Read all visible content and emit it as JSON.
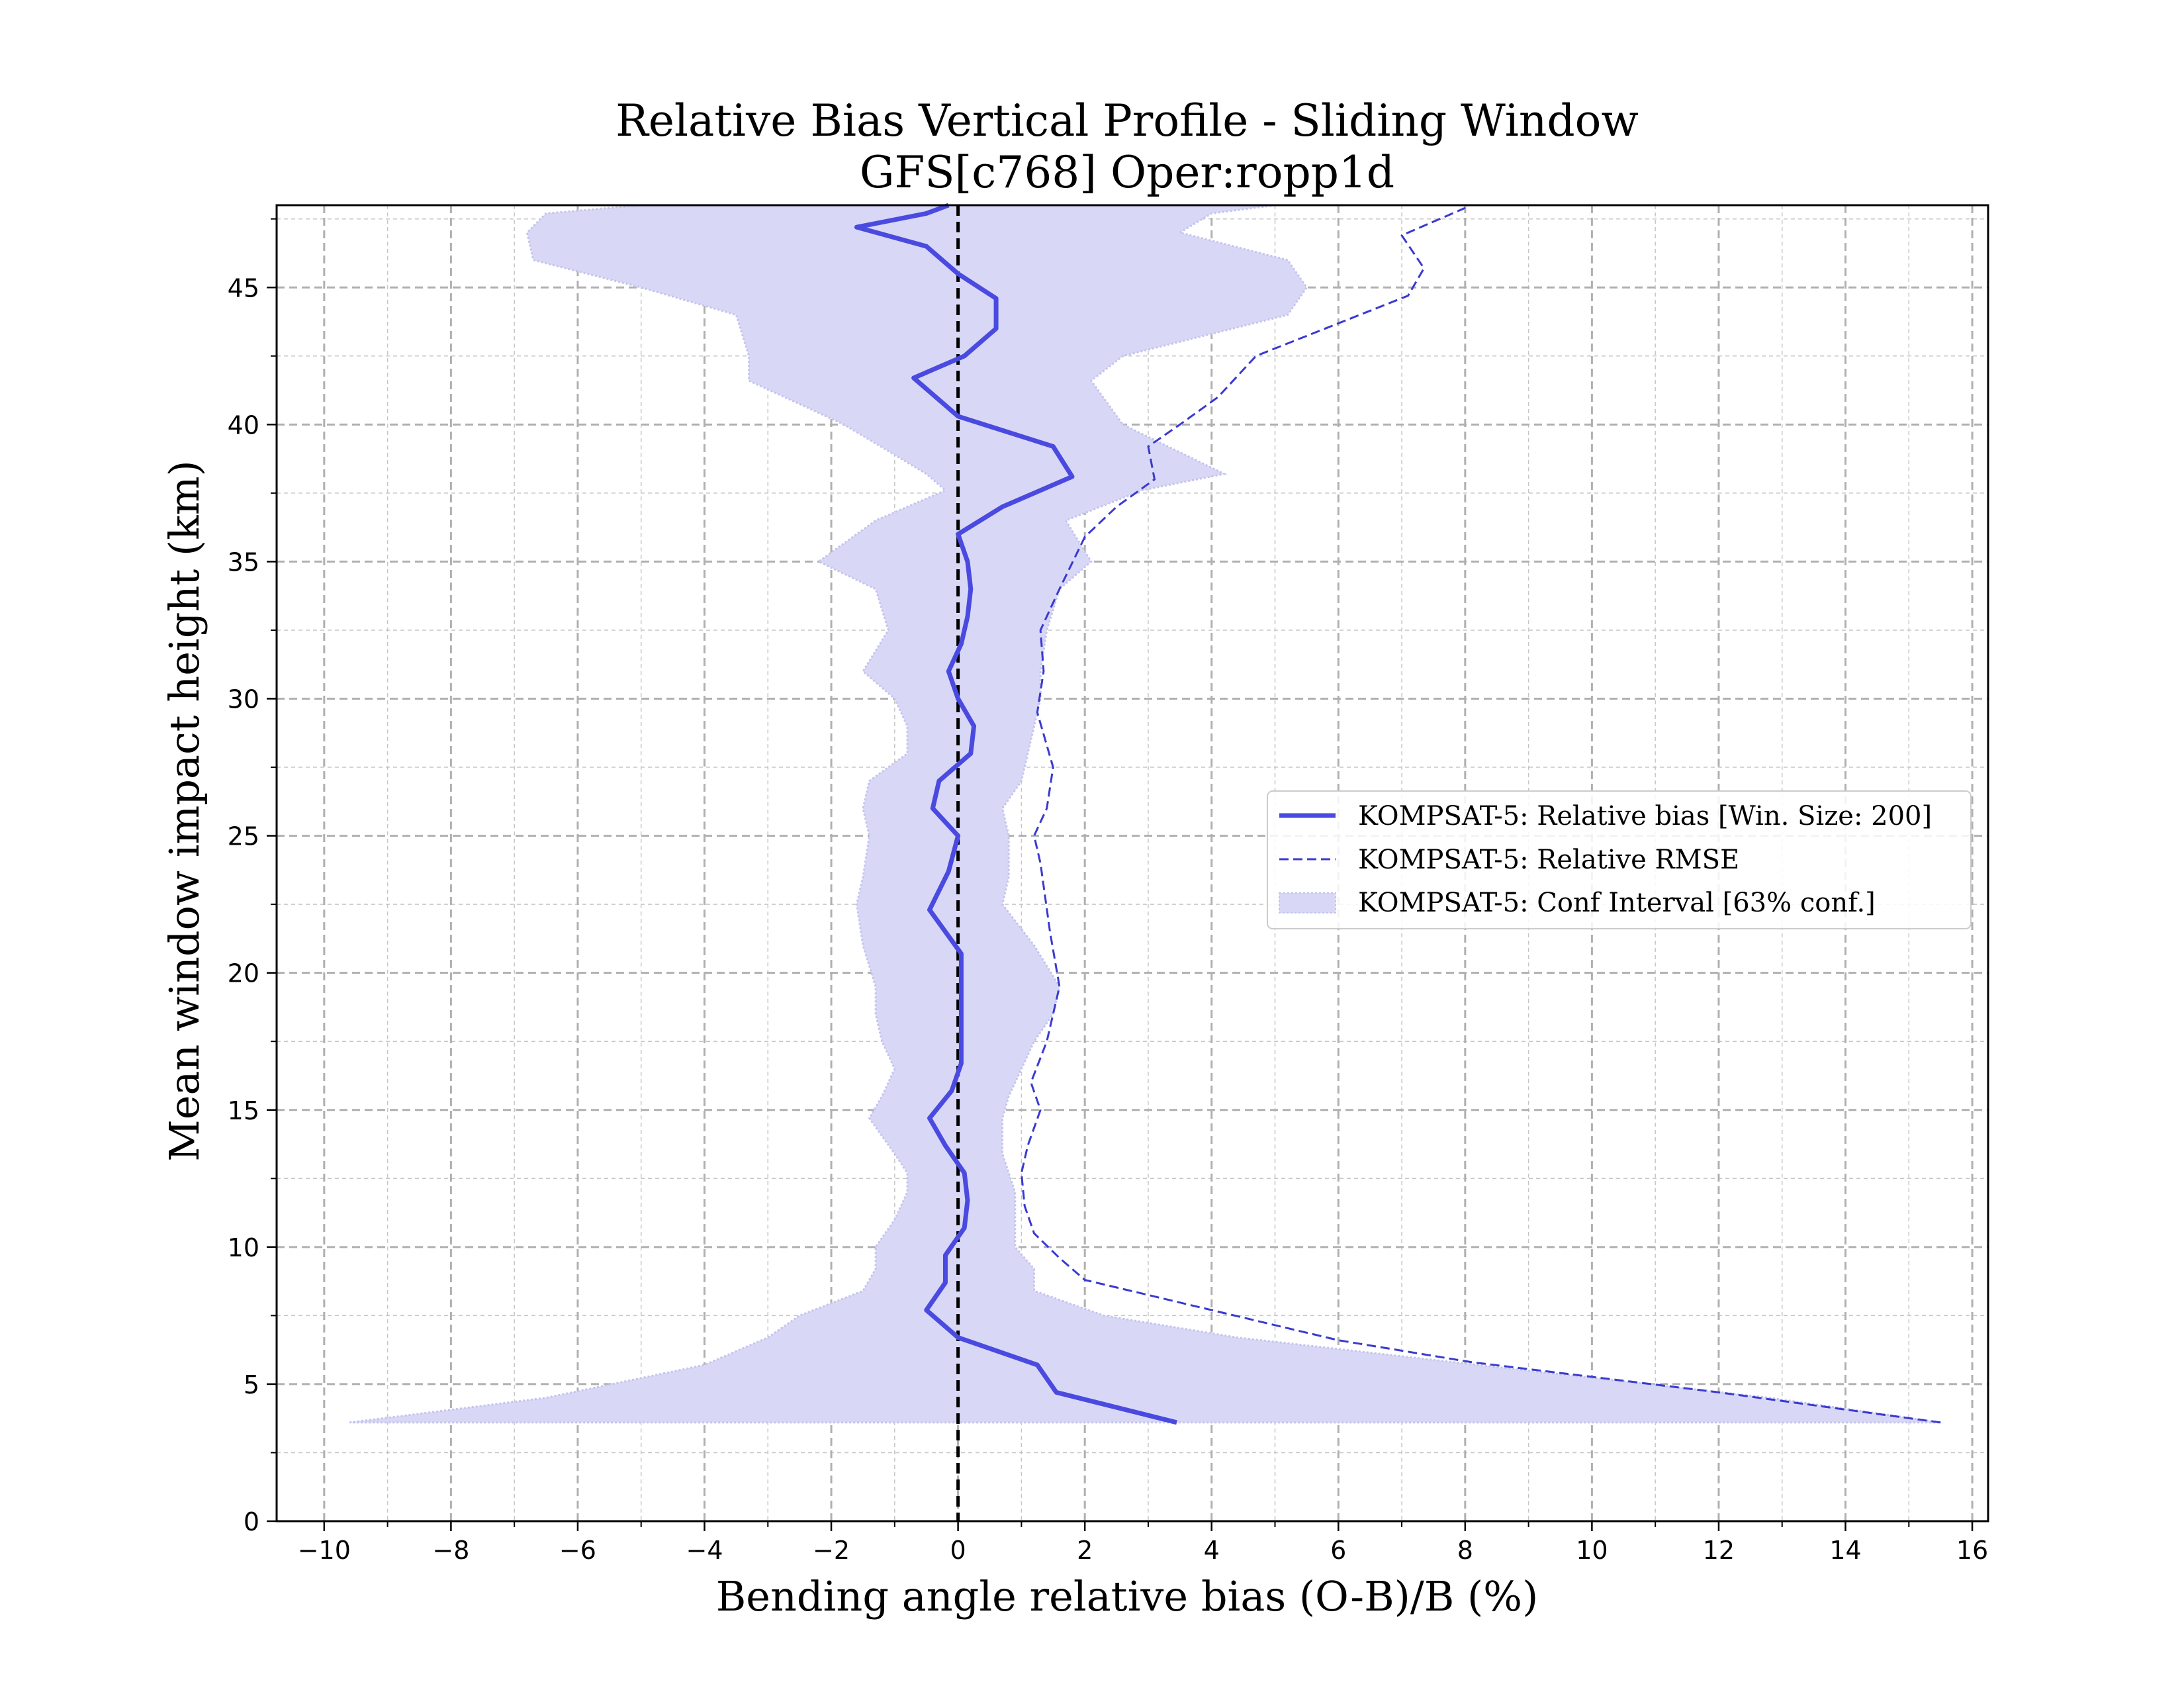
{
  "chart_data": {
    "type": "line",
    "title": "Relative Bias Vertical Profile - Sliding Window",
    "subtitle": "GFS[c768] Oper:ropp1d",
    "xlabel": "Bending angle relative bias (O-B)/B (%)",
    "ylabel": "Mean window impact height (km)",
    "xlim": [
      -10.75,
      16.25
    ],
    "ylim": [
      0,
      48
    ],
    "xticks": [
      -10,
      -8,
      -6,
      -4,
      -2,
      0,
      2,
      4,
      6,
      8,
      10,
      12,
      14,
      16
    ],
    "xtick_labels": [
      "−10",
      "−8",
      "−6",
      "−4",
      "−2",
      "0",
      "2",
      "4",
      "6",
      "8",
      "10",
      "12",
      "14",
      "16"
    ],
    "yticks": [
      0,
      5,
      10,
      15,
      20,
      25,
      30,
      35,
      40,
      45
    ],
    "ytick_labels": [
      "0",
      "5",
      "10",
      "15",
      "20",
      "25",
      "30",
      "35",
      "40",
      "45"
    ],
    "grid": true,
    "legend_position": "center-right",
    "reference_line_x": 0,
    "colors": {
      "bias": "#4a4ae0",
      "rmse": "#3a3ad0",
      "ci_fill": "#d8d8f6",
      "ci_edge": "#c4c4ee",
      "grid": "#b0b0b0",
      "zero_line": "#000000"
    },
    "series": [
      {
        "name": "KOMPSAT-5: Relative bias [Win. Size: 200]",
        "style": "solid",
        "points": [
          [
            3.45,
            3.6
          ],
          [
            1.55,
            4.7
          ],
          [
            1.25,
            5.7
          ],
          [
            0.0,
            6.7
          ],
          [
            -0.5,
            7.7
          ],
          [
            -0.2,
            8.7
          ],
          [
            -0.2,
            9.7
          ],
          [
            0.1,
            10.7
          ],
          [
            0.15,
            11.7
          ],
          [
            0.1,
            12.7
          ],
          [
            -0.2,
            13.7
          ],
          [
            -0.45,
            14.7
          ],
          [
            -0.1,
            15.7
          ],
          [
            0.05,
            16.7
          ],
          [
            0.05,
            17.7
          ],
          [
            0.05,
            18.7
          ],
          [
            0.05,
            19.7
          ],
          [
            0.05,
            20.7
          ],
          [
            -0.45,
            22.3
          ],
          [
            -0.15,
            23.7
          ],
          [
            0.0,
            25.0
          ],
          [
            -0.4,
            26.0
          ],
          [
            -0.3,
            27.0
          ],
          [
            0.2,
            28.0
          ],
          [
            0.25,
            29.0
          ],
          [
            0.0,
            30.0
          ],
          [
            -0.15,
            31.0
          ],
          [
            0.05,
            32.0
          ],
          [
            0.15,
            33.0
          ],
          [
            0.2,
            34.0
          ],
          [
            0.15,
            35.0
          ],
          [
            0.0,
            36.0
          ],
          [
            0.7,
            37.0
          ],
          [
            1.8,
            38.1
          ],
          [
            1.5,
            39.2
          ],
          [
            0.0,
            40.3
          ],
          [
            -0.7,
            41.7
          ],
          [
            0.1,
            42.5
          ],
          [
            0.6,
            43.5
          ],
          [
            0.6,
            44.6
          ],
          [
            0.0,
            45.5
          ],
          [
            -0.5,
            46.5
          ],
          [
            -1.6,
            47.2
          ],
          [
            -0.5,
            47.7
          ],
          [
            -0.15,
            48.0
          ]
        ]
      },
      {
        "name": "KOMPSAT-5: Relative RMSE",
        "style": "dashed",
        "points": [
          [
            15.5,
            3.6
          ],
          [
            12.0,
            4.7
          ],
          [
            8.1,
            5.8
          ],
          [
            6.0,
            6.6
          ],
          [
            4.0,
            7.7
          ],
          [
            2.0,
            8.8
          ],
          [
            1.6,
            9.6
          ],
          [
            1.2,
            10.5
          ],
          [
            1.05,
            11.5
          ],
          [
            1.0,
            12.7
          ],
          [
            1.1,
            13.7
          ],
          [
            1.3,
            15.0
          ],
          [
            1.15,
            16.0
          ],
          [
            1.4,
            17.5
          ],
          [
            1.6,
            19.5
          ],
          [
            1.45,
            21.5
          ],
          [
            1.3,
            24.0
          ],
          [
            1.2,
            25.0
          ],
          [
            1.4,
            26.0
          ],
          [
            1.5,
            27.5
          ],
          [
            1.25,
            29.5
          ],
          [
            1.35,
            31.0
          ],
          [
            1.3,
            32.5
          ],
          [
            1.6,
            34.0
          ],
          [
            2.0,
            35.9
          ],
          [
            2.5,
            37.0
          ],
          [
            3.1,
            38.0
          ],
          [
            3.0,
            39.2
          ],
          [
            3.5,
            40.0
          ],
          [
            4.1,
            41.0
          ],
          [
            4.7,
            42.5
          ],
          [
            7.1,
            44.7
          ],
          [
            7.35,
            45.7
          ],
          [
            7.0,
            46.9
          ],
          [
            8.0,
            47.9
          ]
        ]
      },
      {
        "name": "KOMPSAT-5: Conf Interval [63% conf.]",
        "style": "band",
        "points": [
          [
            -9.6,
            15.5,
            3.6
          ],
          [
            -6.5,
            12.8,
            4.5
          ],
          [
            -4.0,
            8.2,
            5.7
          ],
          [
            -3.0,
            4.4,
            6.7
          ],
          [
            -2.5,
            2.3,
            7.5
          ],
          [
            -1.5,
            1.2,
            8.4
          ],
          [
            -1.3,
            1.2,
            9.2
          ],
          [
            -1.3,
            0.9,
            10.0
          ],
          [
            -1.0,
            0.9,
            11.0
          ],
          [
            -0.8,
            0.9,
            12.0
          ],
          [
            -0.8,
            0.8,
            12.7
          ],
          [
            -1.0,
            0.7,
            13.4
          ],
          [
            -1.4,
            0.7,
            14.7
          ],
          [
            -1.2,
            0.8,
            15.5
          ],
          [
            -1.0,
            1.0,
            16.5
          ],
          [
            -1.2,
            1.2,
            17.5
          ],
          [
            -1.3,
            1.5,
            18.5
          ],
          [
            -1.3,
            1.6,
            19.5
          ],
          [
            -1.5,
            1.2,
            21.0
          ],
          [
            -1.6,
            0.7,
            22.5
          ],
          [
            -1.5,
            0.8,
            23.5
          ],
          [
            -1.4,
            0.8,
            25.0
          ],
          [
            -1.5,
            0.7,
            26.0
          ],
          [
            -1.4,
            1.0,
            27.0
          ],
          [
            -0.8,
            1.1,
            28.0
          ],
          [
            -0.8,
            1.2,
            29.0
          ],
          [
            -1.0,
            1.3,
            30.0
          ],
          [
            -1.5,
            1.3,
            31.0
          ],
          [
            -1.1,
            1.4,
            32.5
          ],
          [
            -1.3,
            1.6,
            34.0
          ],
          [
            -2.2,
            2.1,
            35.0
          ],
          [
            -1.3,
            1.7,
            36.5
          ],
          [
            -0.2,
            2.9,
            37.6
          ],
          [
            -0.5,
            4.2,
            38.2
          ],
          [
            -1.8,
            2.6,
            40.0
          ],
          [
            -3.3,
            2.1,
            41.6
          ],
          [
            -3.3,
            2.6,
            42.5
          ],
          [
            -3.5,
            5.2,
            44.0
          ],
          [
            -5.0,
            5.5,
            45.0
          ],
          [
            -6.7,
            5.2,
            46.0
          ],
          [
            -6.8,
            3.5,
            47.0
          ],
          [
            -6.5,
            4.0,
            47.7
          ],
          [
            -5.0,
            5.0,
            48.0
          ]
        ]
      }
    ]
  }
}
